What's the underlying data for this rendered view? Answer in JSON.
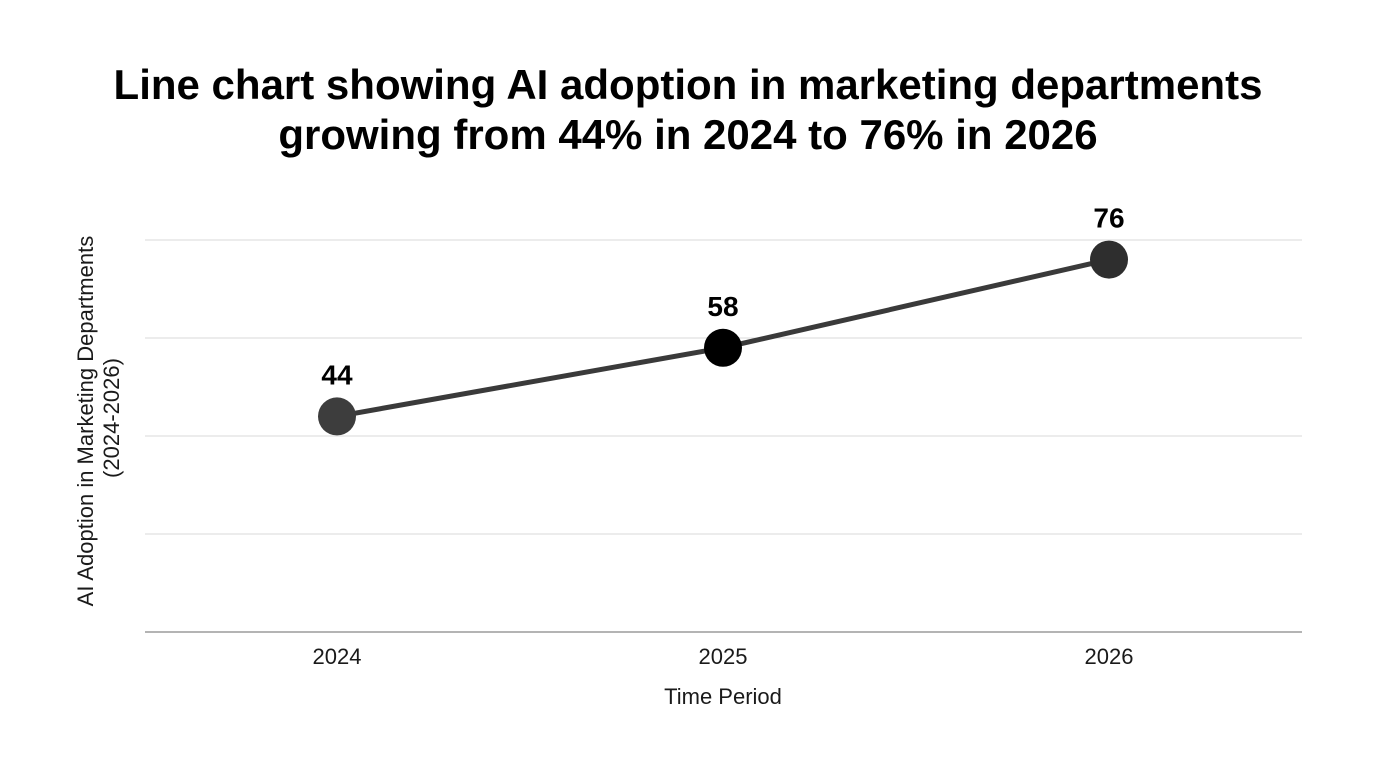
{
  "chart_data": {
    "type": "line",
    "title_lines": [
      "Line chart showing AI adoption in marketing departments",
      "growing from 44% in 2024 to 76% in 2026"
    ],
    "xlabel": "Time Period",
    "ylabel_lines": [
      "AI Adoption in Marketing Departments",
      "(2024-2026)"
    ],
    "categories": [
      "2024",
      "2025",
      "2026"
    ],
    "series": [
      {
        "values": [
          44,
          58,
          76
        ],
        "data_labels": [
          "44",
          "58",
          "76"
        ]
      }
    ],
    "ylim": [
      0,
      80
    ],
    "grid": true,
    "colors": {
      "line": "#3a3a3a",
      "markers": [
        "#3d3d3d",
        "#000000",
        "#2e2e2e"
      ]
    }
  }
}
